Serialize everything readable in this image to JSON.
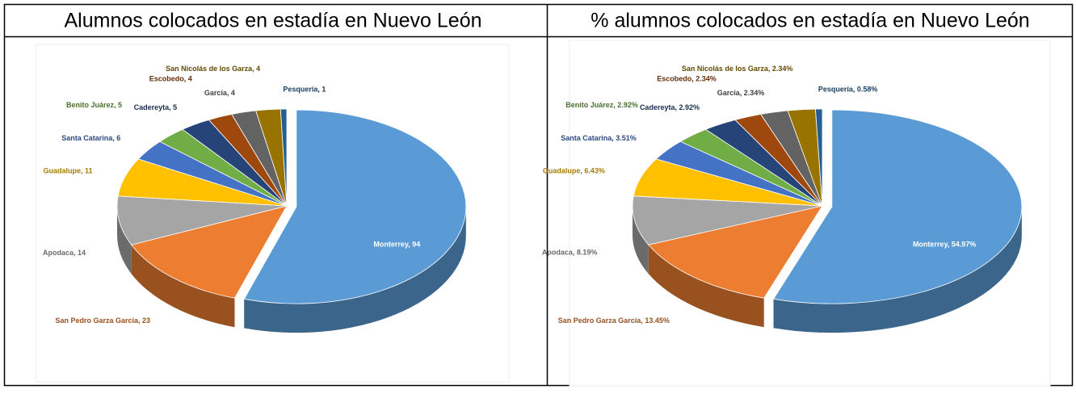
{
  "table": {
    "headers": [
      "Alumnos colocados en estadía en Nuevo León",
      "% alumnos colocados en estadía en Nuevo León"
    ]
  },
  "chart_data": [
    {
      "type": "pie",
      "values": [
        94,
        23,
        14,
        11,
        6,
        5,
        5,
        4,
        4,
        4,
        1
      ],
      "value_labels": [
        "Monterrey, 94",
        "San Pedro Garza García, 23",
        "Apodaca, 14",
        "Guadalupe, 11",
        "Santa Catarina, 6",
        "Benito Juárez, 5",
        "Cadereyta, 5",
        "Escobedo, 4",
        "García, 4",
        "San Nicolás de los Garza, 4",
        "Pesquería, 1"
      ],
      "colors": [
        "#5b9bd5",
        "#ed7d31",
        "#a5a5a5",
        "#ffc000",
        "#4472c4",
        "#70ad47",
        "#264478",
        "#9e480e",
        "#636363",
        "#997300",
        "#255e91"
      ]
    },
    {
      "type": "pie",
      "values": [
        54.97,
        13.45,
        8.19,
        6.43,
        3.51,
        2.92,
        2.92,
        2.34,
        2.34,
        2.34,
        0.58
      ],
      "value_labels": [
        "Monterrey, 54.97%",
        "San Pedro Garza García, 13.45%",
        "Apodaca, 8.19%",
        "Guadalupe, 6.43%",
        "Santa Catarina, 3.51%",
        "Benito Juárez, 2.92%",
        "Cadereyta, 2.92%",
        "Escobedo, 2.34%",
        "García, 2.34%",
        "San Nicolás de los Garza, 2.34%",
        "Pesquería, 0.58%"
      ],
      "colors": [
        "#5b9bd5",
        "#ed7d31",
        "#a5a5a5",
        "#ffc000",
        "#4472c4",
        "#70ad47",
        "#264478",
        "#9e480e",
        "#636363",
        "#997300",
        "#255e91"
      ]
    }
  ]
}
